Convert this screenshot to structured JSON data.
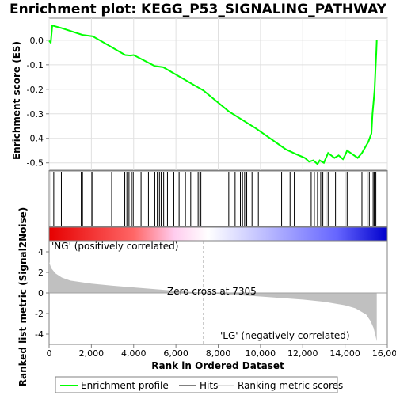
{
  "chart_data": {
    "type": "line",
    "title": "Enrichment plot: KEGG_P53_SIGNALING_PATHWAY",
    "top_panel": {
      "ylabel": "Enrichment score (ES)",
      "ylim": [
        -0.53,
        0.09
      ],
      "yticks": [
        "0.0",
        "-0.1",
        "-0.2",
        "-0.3",
        "-0.4",
        "-0.5"
      ],
      "ytick_values": [
        0.0,
        -0.1,
        -0.2,
        -0.3,
        -0.4,
        -0.5
      ],
      "series": [
        {
          "name": "Enrichment profile",
          "color": "#00ff00",
          "x": [
            0,
            80,
            150,
            580,
            1580,
            2070,
            3000,
            3600,
            3850,
            4000,
            5000,
            5400,
            7305,
            8500,
            9800,
            11200,
            11700,
            12100,
            12300,
            12500,
            12700,
            12800,
            13000,
            13200,
            13500,
            13700,
            13900,
            14000,
            14100,
            14600,
            14800,
            15000,
            15100,
            15250,
            15300,
            15350,
            15400,
            15430,
            15480,
            15500
          ],
          "y": [
            -0.002,
            -0.01,
            0.06,
            0.05,
            0.022,
            0.016,
            -0.03,
            -0.06,
            -0.062,
            -0.06,
            -0.105,
            -0.11,
            -0.205,
            -0.29,
            -0.36,
            -0.445,
            -0.465,
            -0.48,
            -0.495,
            -0.49,
            -0.505,
            -0.49,
            -0.5,
            -0.46,
            -0.48,
            -0.47,
            -0.485,
            -0.47,
            -0.45,
            -0.48,
            -0.46,
            -0.43,
            -0.415,
            -0.38,
            -0.3,
            -0.25,
            -0.2,
            -0.14,
            -0.05,
            0.0
          ]
        }
      ]
    },
    "hits": {
      "name": "Hits",
      "positions": [
        90,
        220,
        580,
        1520,
        1580,
        2020,
        2070,
        2960,
        3580,
        3680,
        3780,
        3900,
        3980,
        4350,
        4700,
        5000,
        5120,
        5220,
        5300,
        5420,
        5600,
        5900,
        6150,
        6450,
        6700,
        7050,
        7130,
        7180,
        8500,
        8800,
        9050,
        9150,
        9250,
        9350,
        9600,
        9900,
        11000,
        11400,
        11600,
        12400,
        12550,
        12700,
        12850,
        12950,
        13100,
        13200,
        13550,
        14000,
        14100,
        14800,
        15050,
        15150,
        15330,
        15380,
        15420,
        15460
      ]
    },
    "ranked_metric": {
      "name": "Ranking metric scores",
      "ylabel": "Ranked list metric (Signal2Noise)",
      "ylim": [
        -5,
        5
      ],
      "yticks": [
        "4",
        "2",
        "0",
        "-2",
        "-4"
      ],
      "ytick_values": [
        4,
        2,
        0,
        -2,
        -4
      ],
      "x": [
        0,
        100,
        300,
        600,
        1000,
        2000,
        3000,
        4500,
        6000,
        7305,
        8500,
        10000,
        12000,
        13000,
        14000,
        14500,
        15000,
        15200,
        15350,
        15450,
        15500
      ],
      "y": [
        3.0,
        2.4,
        1.9,
        1.5,
        1.2,
        0.9,
        0.7,
        0.45,
        0.2,
        0.0,
        -0.15,
        -0.35,
        -0.65,
        -0.85,
        -1.2,
        -1.5,
        -2.1,
        -2.7,
        -3.4,
        -4.2,
        -4.7
      ],
      "zero_cross_label": "Zero cross at 7305",
      "pos_label": "'NG' (positively correlated)",
      "neg_label": "'LG' (negatively correlated)"
    },
    "xlabel": "Rank in Ordered Dataset",
    "xlim": [
      0,
      16000
    ],
    "xticks": [
      "0",
      "2,000",
      "4,000",
      "6,000",
      "8,000",
      "10,000",
      "12,000",
      "14,000",
      "16,000"
    ],
    "xtick_values": [
      0,
      2000,
      4000,
      6000,
      8000,
      10000,
      12000,
      14000,
      16000
    ],
    "legend": {
      "placement": "bottom",
      "items": [
        {
          "label": "Enrichment profile",
          "color": "#00ff00"
        },
        {
          "label": "Hits",
          "color": "#000000"
        },
        {
          "label": "Ranking metric scores",
          "color": "#c0c0c0"
        }
      ]
    },
    "colors": {
      "profile": "#00ff00",
      "metric_fill": "#c0c0c0",
      "pos": "#ff0000",
      "neg": "#0000ff",
      "pos_label": "#ff0000",
      "neg_label": "#0000ff"
    }
  }
}
